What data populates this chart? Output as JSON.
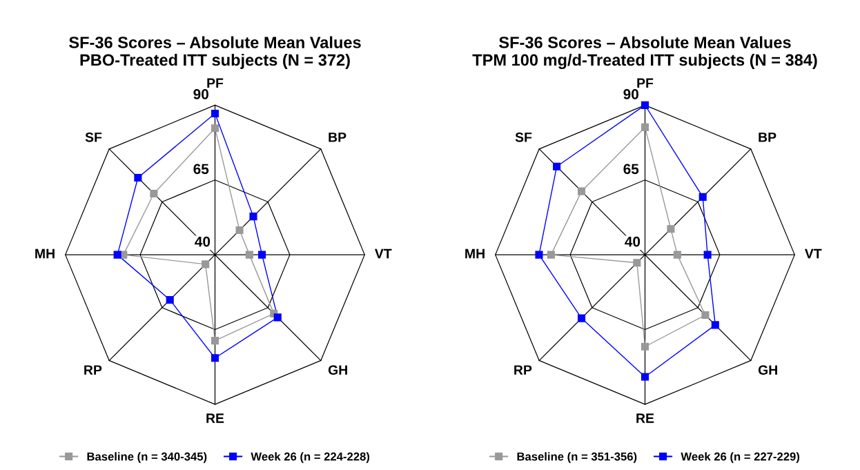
{
  "chart_data": [
    {
      "type": "radar",
      "title": "SF-36 Scores – Absolute Mean Values\nPBO-Treated ITT subjects (N = 372)",
      "categories": [
        "PF",
        "BP",
        "VT",
        "GH",
        "RE",
        "RP",
        "MH",
        "SF"
      ],
      "ylim": [
        40,
        90
      ],
      "yticks": [
        40,
        65,
        90
      ],
      "grid": true,
      "legend": "bottom",
      "marker": "square",
      "line_style": "solid",
      "series": [
        {
          "name": "Baseline (n = 340-345)",
          "color": "#999999",
          "values": [
            82.3,
            51.6,
            51.5,
            67.8,
            68.7,
            44.5,
            70.6,
            68.9
          ]
        },
        {
          "name": "Week 26 (n = 224-228)",
          "color": "#0000ff",
          "values": [
            87.2,
            58.1,
            55.7,
            69.6,
            74.5,
            61.3,
            72.6,
            76.4
          ]
        }
      ]
    },
    {
      "type": "radar",
      "title": "SF-36 Scores – Absolute Mean Values\nTPM 100 mg/d-Treated ITT subjects (N = 384)",
      "categories": [
        "PF",
        "BP",
        "VT",
        "GH",
        "RE",
        "RP",
        "MH",
        "SF"
      ],
      "ylim": [
        40,
        90
      ],
      "yticks": [
        40,
        65,
        90
      ],
      "grid": true,
      "legend": "bottom",
      "marker": "square",
      "line_style": "solid",
      "series": [
        {
          "name": "Baseline (n = 351-356)",
          "color": "#999999",
          "values": [
            82.6,
            52.2,
            50.8,
            68.5,
            70.7,
            43.8,
            71.4,
            70.0
          ]
        },
        {
          "name": "Week 26 (n = 227-229)",
          "color": "#0000ff",
          "values": [
            90.0,
            67.3,
            60.9,
            73.2,
            80.8,
            70.0,
            75.4,
            81.7
          ]
        }
      ]
    }
  ]
}
